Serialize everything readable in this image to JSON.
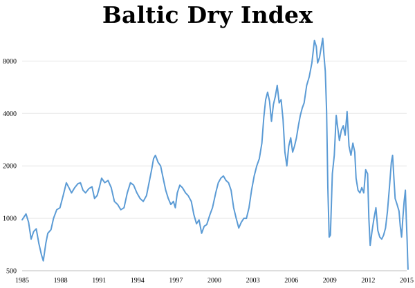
{
  "title": "Baltic Dry Index",
  "chart_data": {
    "type": "line",
    "title": "Baltic Dry Index",
    "xlabel": "",
    "ylabel": "",
    "y_scale": "log",
    "ylim": [
      500,
      12000
    ],
    "xlim": [
      1985,
      2015
    ],
    "y_ticks": [
      500,
      1000,
      2000,
      4000,
      8000
    ],
    "x_ticks": [
      1985,
      1988,
      1991,
      1994,
      1997,
      2000,
      2003,
      2006,
      2009,
      2012,
      2015
    ],
    "grid": true,
    "line_color": "#5b9bd5",
    "series": [
      {
        "points": [
          [
            1985.0,
            980
          ],
          [
            1985.3,
            1060
          ],
          [
            1985.5,
            950
          ],
          [
            1985.7,
            760
          ],
          [
            1985.9,
            840
          ],
          [
            1986.1,
            870
          ],
          [
            1986.3,
            720
          ],
          [
            1986.5,
            620
          ],
          [
            1986.65,
            570
          ],
          [
            1986.85,
            720
          ],
          [
            1987.0,
            820
          ],
          [
            1987.25,
            860
          ],
          [
            1987.45,
            1000
          ],
          [
            1987.7,
            1120
          ],
          [
            1987.95,
            1150
          ],
          [
            1988.2,
            1350
          ],
          [
            1988.45,
            1600
          ],
          [
            1988.65,
            1500
          ],
          [
            1988.85,
            1400
          ],
          [
            1989.1,
            1500
          ],
          [
            1989.35,
            1580
          ],
          [
            1989.55,
            1600
          ],
          [
            1989.75,
            1450
          ],
          [
            1989.95,
            1400
          ],
          [
            1990.2,
            1480
          ],
          [
            1990.45,
            1520
          ],
          [
            1990.65,
            1300
          ],
          [
            1990.85,
            1350
          ],
          [
            1991.0,
            1480
          ],
          [
            1991.2,
            1700
          ],
          [
            1991.45,
            1600
          ],
          [
            1991.7,
            1650
          ],
          [
            1991.95,
            1500
          ],
          [
            1992.2,
            1250
          ],
          [
            1992.45,
            1200
          ],
          [
            1992.7,
            1120
          ],
          [
            1992.95,
            1150
          ],
          [
            1993.2,
            1400
          ],
          [
            1993.45,
            1600
          ],
          [
            1993.7,
            1550
          ],
          [
            1993.95,
            1400
          ],
          [
            1994.2,
            1300
          ],
          [
            1994.45,
            1250
          ],
          [
            1994.7,
            1350
          ],
          [
            1994.9,
            1600
          ],
          [
            1995.1,
            1900
          ],
          [
            1995.25,
            2200
          ],
          [
            1995.4,
            2300
          ],
          [
            1995.6,
            2100
          ],
          [
            1995.8,
            2000
          ],
          [
            1996.0,
            1700
          ],
          [
            1996.2,
            1450
          ],
          [
            1996.4,
            1300
          ],
          [
            1996.6,
            1200
          ],
          [
            1996.8,
            1250
          ],
          [
            1996.95,
            1150
          ],
          [
            1997.1,
            1400
          ],
          [
            1997.3,
            1550
          ],
          [
            1997.5,
            1500
          ],
          [
            1997.75,
            1400
          ],
          [
            1997.95,
            1350
          ],
          [
            1998.2,
            1250
          ],
          [
            1998.4,
            1050
          ],
          [
            1998.6,
            930
          ],
          [
            1998.8,
            980
          ],
          [
            1999.0,
            820
          ],
          [
            1999.2,
            900
          ],
          [
            1999.4,
            920
          ],
          [
            1999.65,
            1050
          ],
          [
            1999.85,
            1150
          ],
          [
            2000.1,
            1400
          ],
          [
            2000.3,
            1600
          ],
          [
            2000.5,
            1700
          ],
          [
            2000.7,
            1750
          ],
          [
            2000.9,
            1650
          ],
          [
            2001.1,
            1600
          ],
          [
            2001.3,
            1450
          ],
          [
            2001.5,
            1150
          ],
          [
            2001.7,
            1000
          ],
          [
            2001.9,
            880
          ],
          [
            2002.1,
            950
          ],
          [
            2002.3,
            1000
          ],
          [
            2002.5,
            1000
          ],
          [
            2002.7,
            1150
          ],
          [
            2002.9,
            1450
          ],
          [
            2003.1,
            1750
          ],
          [
            2003.3,
            2000
          ],
          [
            2003.5,
            2200
          ],
          [
            2003.7,
            2700
          ],
          [
            2003.85,
            3800
          ],
          [
            2004.0,
            4800
          ],
          [
            2004.15,
            5300
          ],
          [
            2004.3,
            4700
          ],
          [
            2004.45,
            3600
          ],
          [
            2004.6,
            4500
          ],
          [
            2004.75,
            5000
          ],
          [
            2004.9,
            5800
          ],
          [
            2005.05,
            4600
          ],
          [
            2005.2,
            4800
          ],
          [
            2005.35,
            3700
          ],
          [
            2005.5,
            2400
          ],
          [
            2005.65,
            2000
          ],
          [
            2005.8,
            2600
          ],
          [
            2005.95,
            2900
          ],
          [
            2006.1,
            2400
          ],
          [
            2006.25,
            2600
          ],
          [
            2006.4,
            2900
          ],
          [
            2006.55,
            3400
          ],
          [
            2006.7,
            3900
          ],
          [
            2006.85,
            4300
          ],
          [
            2007.0,
            4600
          ],
          [
            2007.2,
            5800
          ],
          [
            2007.4,
            6500
          ],
          [
            2007.6,
            7800
          ],
          [
            2007.8,
            10500
          ],
          [
            2007.95,
            9700
          ],
          [
            2008.05,
            7800
          ],
          [
            2008.2,
            8400
          ],
          [
            2008.35,
            9800
          ],
          [
            2008.45,
            10800
          ],
          [
            2008.55,
            8500
          ],
          [
            2008.65,
            7000
          ],
          [
            2008.75,
            4100
          ],
          [
            2008.85,
            1500
          ],
          [
            2008.95,
            780
          ],
          [
            2009.05,
            800
          ],
          [
            2009.2,
            1800
          ],
          [
            2009.35,
            2300
          ],
          [
            2009.5,
            3900
          ],
          [
            2009.6,
            3400
          ],
          [
            2009.75,
            2800
          ],
          [
            2009.9,
            3200
          ],
          [
            2010.05,
            3400
          ],
          [
            2010.2,
            3000
          ],
          [
            2010.35,
            4100
          ],
          [
            2010.5,
            2600
          ],
          [
            2010.65,
            2300
          ],
          [
            2010.8,
            2700
          ],
          [
            2010.95,
            2400
          ],
          [
            2011.05,
            1700
          ],
          [
            2011.2,
            1450
          ],
          [
            2011.35,
            1400
          ],
          [
            2011.5,
            1500
          ],
          [
            2011.65,
            1400
          ],
          [
            2011.8,
            1900
          ],
          [
            2011.95,
            1800
          ],
          [
            2012.05,
            1000
          ],
          [
            2012.15,
            700
          ],
          [
            2012.3,
            850
          ],
          [
            2012.45,
            1000
          ],
          [
            2012.6,
            1150
          ],
          [
            2012.75,
            850
          ],
          [
            2012.9,
            780
          ],
          [
            2013.05,
            760
          ],
          [
            2013.2,
            800
          ],
          [
            2013.35,
            880
          ],
          [
            2013.5,
            1100
          ],
          [
            2013.65,
            1500
          ],
          [
            2013.8,
            2100
          ],
          [
            2013.9,
            2300
          ],
          [
            2014.0,
            1700
          ],
          [
            2014.1,
            1300
          ],
          [
            2014.25,
            1200
          ],
          [
            2014.4,
            1100
          ],
          [
            2014.5,
            900
          ],
          [
            2014.6,
            780
          ],
          [
            2014.7,
            1000
          ],
          [
            2014.8,
            1250
          ],
          [
            2014.9,
            1450
          ],
          [
            2014.97,
            1000
          ],
          [
            2015.03,
            750
          ],
          [
            2015.07,
            600
          ],
          [
            2015.1,
            510
          ]
        ]
      }
    ]
  }
}
